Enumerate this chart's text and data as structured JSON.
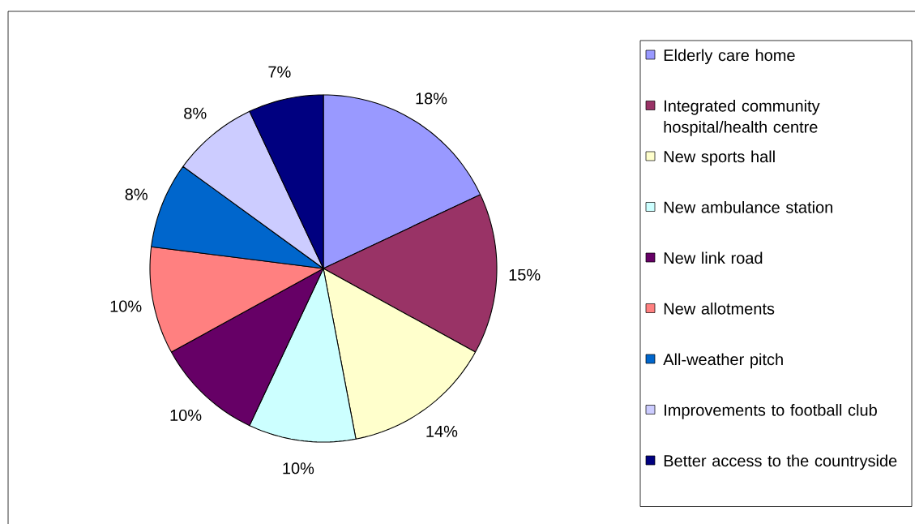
{
  "chart_data": {
    "type": "pie",
    "categories": [
      "Elderly care home",
      "Integrated community hospital/health centre",
      "New sports hall",
      "New ambulance station",
      "New link road",
      "New allotments",
      "All-weather pitch",
      "Improvements to football club",
      "Better access to the countryside"
    ],
    "values": [
      18,
      15,
      14,
      10,
      10,
      10,
      8,
      8,
      7
    ],
    "colors": [
      "#9999ff",
      "#993366",
      "#ffffcc",
      "#ccffff",
      "#660066",
      "#ff8080",
      "#0066cc",
      "#ccccff",
      "#000080"
    ],
    "value_labels": [
      "18%",
      "15%",
      "14%",
      "10%",
      "10%",
      "10%",
      "8%",
      "8%",
      "7%"
    ],
    "legend": "right"
  }
}
